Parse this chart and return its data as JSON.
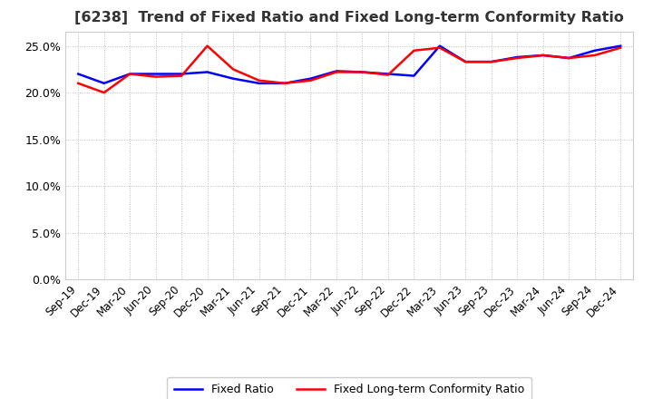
{
  "title": "[6238]  Trend of Fixed Ratio and Fixed Long-term Conformity Ratio",
  "x_labels": [
    "Sep-19",
    "Dec-19",
    "Mar-20",
    "Jun-20",
    "Sep-20",
    "Dec-20",
    "Mar-21",
    "Jun-21",
    "Sep-21",
    "Dec-21",
    "Mar-22",
    "Jun-22",
    "Sep-22",
    "Dec-22",
    "Mar-23",
    "Jun-23",
    "Sep-23",
    "Dec-23",
    "Mar-24",
    "Jun-24",
    "Sep-24",
    "Dec-24"
  ],
  "fixed_ratio": [
    0.22,
    0.21,
    0.22,
    0.22,
    0.22,
    0.222,
    0.215,
    0.21,
    0.21,
    0.215,
    0.223,
    0.222,
    0.22,
    0.218,
    0.25,
    0.233,
    0.233,
    0.238,
    0.24,
    0.237,
    0.245,
    0.25
  ],
  "fixed_lt_ratio": [
    0.21,
    0.2,
    0.22,
    0.217,
    0.218,
    0.25,
    0.225,
    0.213,
    0.21,
    0.213,
    0.222,
    0.222,
    0.219,
    0.245,
    0.248,
    0.233,
    0.233,
    0.237,
    0.24,
    0.237,
    0.24,
    0.248
  ],
  "fixed_ratio_color": "#0000FF",
  "fixed_lt_ratio_color": "#FF0000",
  "ylim": [
    0.0,
    0.265
  ],
  "yticks": [
    0.0,
    0.05,
    0.1,
    0.15,
    0.2,
    0.25
  ],
  "background_color": "#FFFFFF",
  "plot_bg_color": "#FFFFFF",
  "grid_color": "#BBBBBB",
  "legend_fixed_ratio": "Fixed Ratio",
  "legend_fixed_lt_ratio": "Fixed Long-term Conformity Ratio",
  "line_width": 1.8,
  "title_color": "#333333",
  "title_fontsize": 11.5
}
